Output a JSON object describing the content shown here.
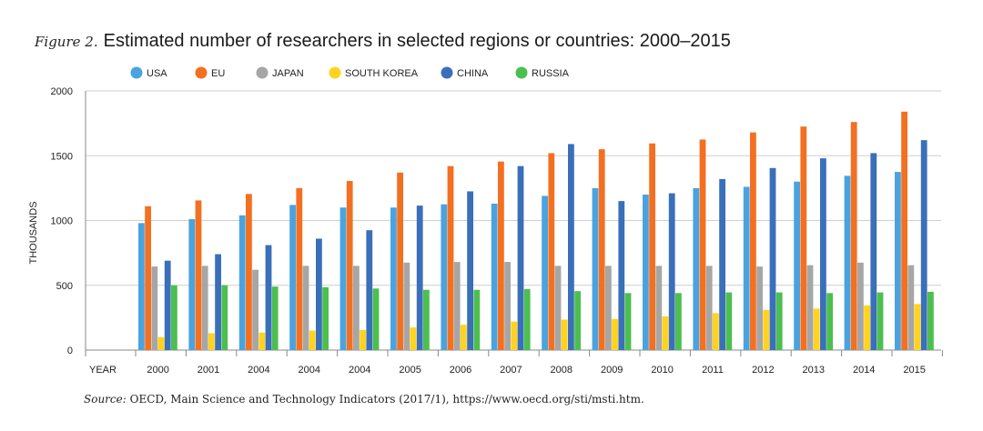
{
  "figure_label": "Figure 2.",
  "figure_title": "Estimated number of researchers in selected regions or countries: 2000–2015",
  "source_label": "Source:",
  "source_text": "OECD, Main Science and Technology Indicators (2017/1), https://www.oecd.org/sti/msti.htm.",
  "chart_data": {
    "type": "bar",
    "title": "Estimated number of researchers in selected regions or countries: 2000–2015",
    "xlabel": "YEAR",
    "ylabel": "THOUSANDS",
    "ylim": [
      0,
      2000
    ],
    "yticks": [
      0,
      500,
      1000,
      1500,
      2000
    ],
    "grid": true,
    "legend_position": "top",
    "categories": [
      "2000",
      "2001",
      "2004",
      "2004",
      "2004",
      "2005",
      "2006",
      "2007",
      "2008",
      "2009",
      "2010",
      "2011",
      "2012",
      "2013",
      "2014",
      "2015"
    ],
    "series": [
      {
        "name": "USA",
        "color": "#4aa3df",
        "values": [
          980,
          1010,
          1040,
          1120,
          1100,
          1100,
          1125,
          1130,
          1190,
          1250,
          1200,
          1250,
          1260,
          1300,
          1345,
          1375
        ]
      },
      {
        "name": "EU",
        "color": "#f37021",
        "values": [
          1110,
          1155,
          1205,
          1250,
          1305,
          1370,
          1420,
          1455,
          1520,
          1550,
          1595,
          1625,
          1680,
          1725,
          1760,
          1840
        ]
      },
      {
        "name": "JAPAN",
        "color": "#a6a6a6",
        "values": [
          645,
          650,
          620,
          650,
          650,
          675,
          680,
          680,
          650,
          650,
          650,
          650,
          645,
          655,
          675,
          655
        ]
      },
      {
        "name": "SOUTH KOREA",
        "color": "#ffd320",
        "values": [
          100,
          130,
          135,
          150,
          155,
          175,
          195,
          220,
          235,
          240,
          260,
          285,
          310,
          320,
          345,
          355
        ]
      },
      {
        "name": "CHINA",
        "color": "#3a6fba",
        "values": [
          690,
          740,
          810,
          860,
          925,
          1115,
          1225,
          1420,
          1590,
          1150,
          1210,
          1320,
          1405,
          1480,
          1520,
          1620
        ]
      },
      {
        "name": "RUSSIA",
        "color": "#4cbf4f",
        "values": [
          500,
          500,
          490,
          485,
          475,
          465,
          465,
          470,
          455,
          440,
          440,
          445,
          445,
          440,
          445,
          450
        ]
      }
    ]
  }
}
